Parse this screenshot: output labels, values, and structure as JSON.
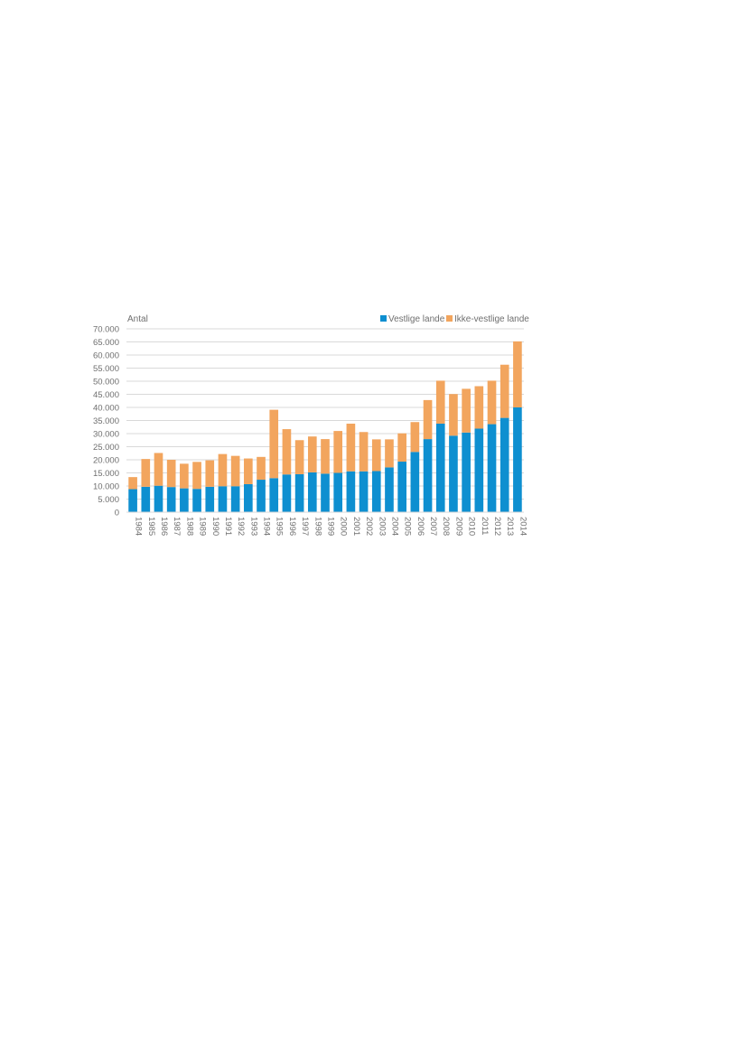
{
  "chart_data": {
    "type": "bar",
    "stacked": true,
    "y_unit_label": "Antal",
    "categories": [
      "1984",
      "1985",
      "1986",
      "1987",
      "1988",
      "1989",
      "1990",
      "1991",
      "1992",
      "1993",
      "1994",
      "1995",
      "1996",
      "1997",
      "1998",
      "1999",
      "2000",
      "2001",
      "2002",
      "2003",
      "2004",
      "2005",
      "2006",
      "2007",
      "2008",
      "2009",
      "2010",
      "2011",
      "2012",
      "2013",
      "2014"
    ],
    "series": [
      {
        "name": "Vestlige lande",
        "color": "#0e8fd0",
        "values": [
          8800,
          9700,
          10100,
          9600,
          9100,
          8900,
          9700,
          9900,
          9900,
          10700,
          12400,
          13000,
          14400,
          14500,
          15200,
          14700,
          15000,
          15600,
          15600,
          15700,
          17100,
          19300,
          23000,
          27900,
          33800,
          29200,
          30400,
          31900,
          33600,
          36000,
          40000
        ]
      },
      {
        "name": "Ikke-vestlige lande",
        "color": "#f2a55e",
        "values": [
          4600,
          10600,
          12500,
          10400,
          9400,
          10300,
          10100,
          12300,
          11600,
          9800,
          8700,
          26100,
          17300,
          13000,
          13700,
          13200,
          16000,
          18200,
          15000,
          12100,
          10700,
          10800,
          11400,
          14900,
          16400,
          15900,
          16700,
          16200,
          16600,
          20300,
          25200
        ]
      }
    ],
    "ylim": [
      0,
      70000
    ],
    "yticks": [
      0,
      5000,
      10000,
      15000,
      20000,
      25000,
      30000,
      35000,
      40000,
      45000,
      50000,
      55000,
      60000,
      65000,
      70000
    ],
    "ytick_labels": [
      "0",
      "5.000",
      "10.000",
      "15.000",
      "20.000",
      "25.000",
      "30.000",
      "35.000",
      "40.000",
      "45.000",
      "50.000",
      "55.000",
      "60.000",
      "65.000",
      "70.000"
    ],
    "grid": true,
    "legend": "top-right",
    "xtick_rotation": "vertical"
  }
}
